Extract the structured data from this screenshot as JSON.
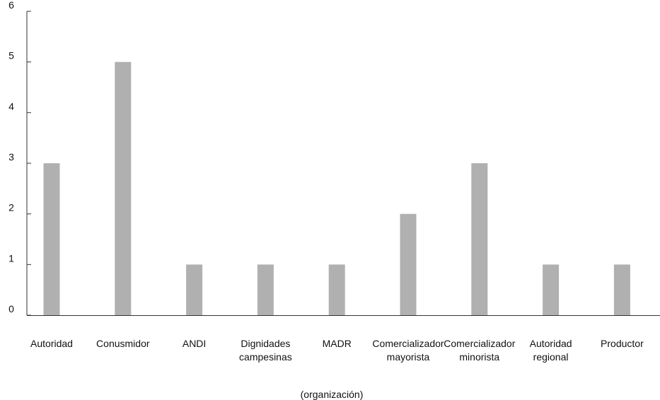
{
  "chart_data": {
    "type": "bar",
    "title": "",
    "xlabel": "(organización)",
    "ylabel": "",
    "ylim": [
      0,
      6
    ],
    "yticks": [
      0,
      1,
      2,
      3,
      4,
      5,
      6
    ],
    "categories": [
      [
        "Autoridad"
      ],
      [
        "Conusmidor"
      ],
      [
        "ANDI"
      ],
      [
        "Dignidades",
        "campesinas"
      ],
      [
        "MADR"
      ],
      [
        "Comercializador",
        "mayorista"
      ],
      [
        "Comercializador",
        "minorista"
      ],
      [
        "Autoridad",
        "regional"
      ],
      [
        "Productor"
      ]
    ],
    "values": [
      3,
      5,
      1,
      1,
      1,
      2,
      3,
      1,
      1
    ],
    "bar_color": "#b0b0b0",
    "axis_color": "#333333",
    "grid": false,
    "legend": "none"
  }
}
